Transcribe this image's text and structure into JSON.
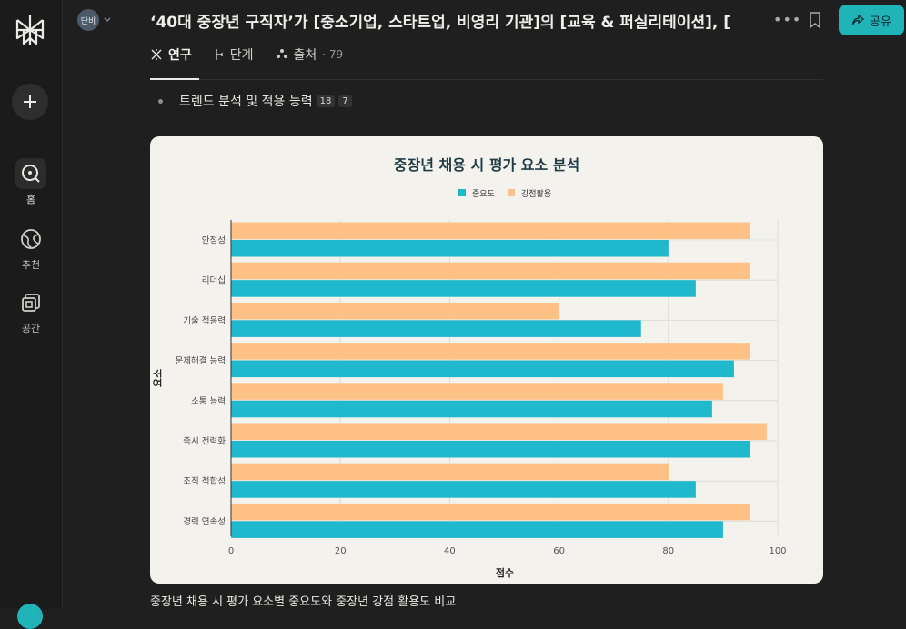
{
  "sidebar": {
    "logo_icon": "perplexity-logo-icon",
    "new_icon": "plus-icon",
    "items": [
      {
        "label": "홈",
        "icon": "search-circle-icon",
        "active": true
      },
      {
        "label": "추천",
        "icon": "globe-icon",
        "active": false
      },
      {
        "label": "공간",
        "icon": "spaces-icon",
        "active": false
      }
    ]
  },
  "header": {
    "user_initials": "단비",
    "title": "‘40대 중장년 구직자’가 [중소기업, 스타트업, 비영리 기관]의 [교육 & 퍼실리테이션], [",
    "share_label": "공유"
  },
  "tabs": [
    {
      "label": "연구",
      "icon": "research-icon",
      "count": ""
    },
    {
      "label": "단계",
      "icon": "steps-icon",
      "count": ""
    },
    {
      "label": "출처",
      "icon": "sources-icon",
      "count": "· 79"
    }
  ],
  "content": {
    "bullet_text": "트렌드 분석 및 적용 능력",
    "badges": [
      "18",
      "7"
    ],
    "caption": "중장년 채용 시 평가 요소별 중요도와 중장년 강점 활용도 비교"
  },
  "colors": {
    "accent": "#20b3b8",
    "series1": "#1fb8cc",
    "series2": "#ffc185"
  },
  "chart_data": {
    "type": "bar",
    "orientation": "horizontal",
    "title": "중장년 채용 시 평가 요소 분석",
    "xlabel": "점수",
    "ylabel": "요소",
    "xlim": [
      0,
      100
    ],
    "xticks": [
      "0",
      "20",
      "40",
      "60",
      "80",
      "100"
    ],
    "legend_position": "top-center",
    "grid": true,
    "categories": [
      "안정성",
      "리더십",
      "기술 적응력",
      "문제해결 능력",
      "소통 능력",
      "즉시 전력화",
      "조직 적합성",
      "경력 연속성"
    ],
    "series": [
      {
        "name": "중요도",
        "color": "#1fb8cc",
        "values": [
          80,
          85,
          75,
          92,
          88,
          95,
          85,
          90
        ]
      },
      {
        "name": "강점활용",
        "color": "#ffc185",
        "values": [
          95,
          95,
          60,
          95,
          90,
          98,
          80,
          95
        ]
      }
    ]
  }
}
